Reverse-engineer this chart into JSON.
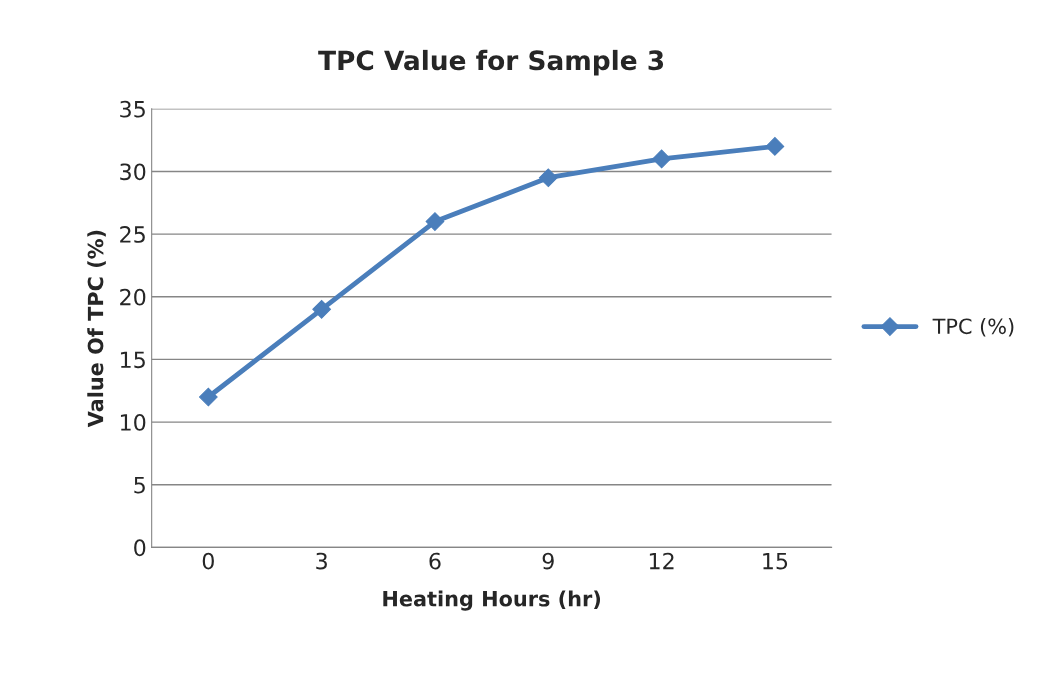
{
  "chart_data": {
    "type": "line",
    "title": "TPC Value for Sample 3",
    "xlabel": "Heating Hours (hr)",
    "ylabel": "Value Of TPC (%)",
    "categories": [
      "0",
      "3",
      "6",
      "9",
      "12",
      "15"
    ],
    "series": [
      {
        "name": "TPC (%)",
        "color": "#4a7ebb",
        "values": [
          12,
          19,
          26,
          29.5,
          31,
          32
        ]
      }
    ],
    "ylim": [
      0,
      35
    ],
    "yticks": [
      0,
      5,
      10,
      15,
      20,
      25,
      30,
      35
    ],
    "grid": "y",
    "legend": "right",
    "marker": "diamond",
    "line_style": "solid"
  }
}
